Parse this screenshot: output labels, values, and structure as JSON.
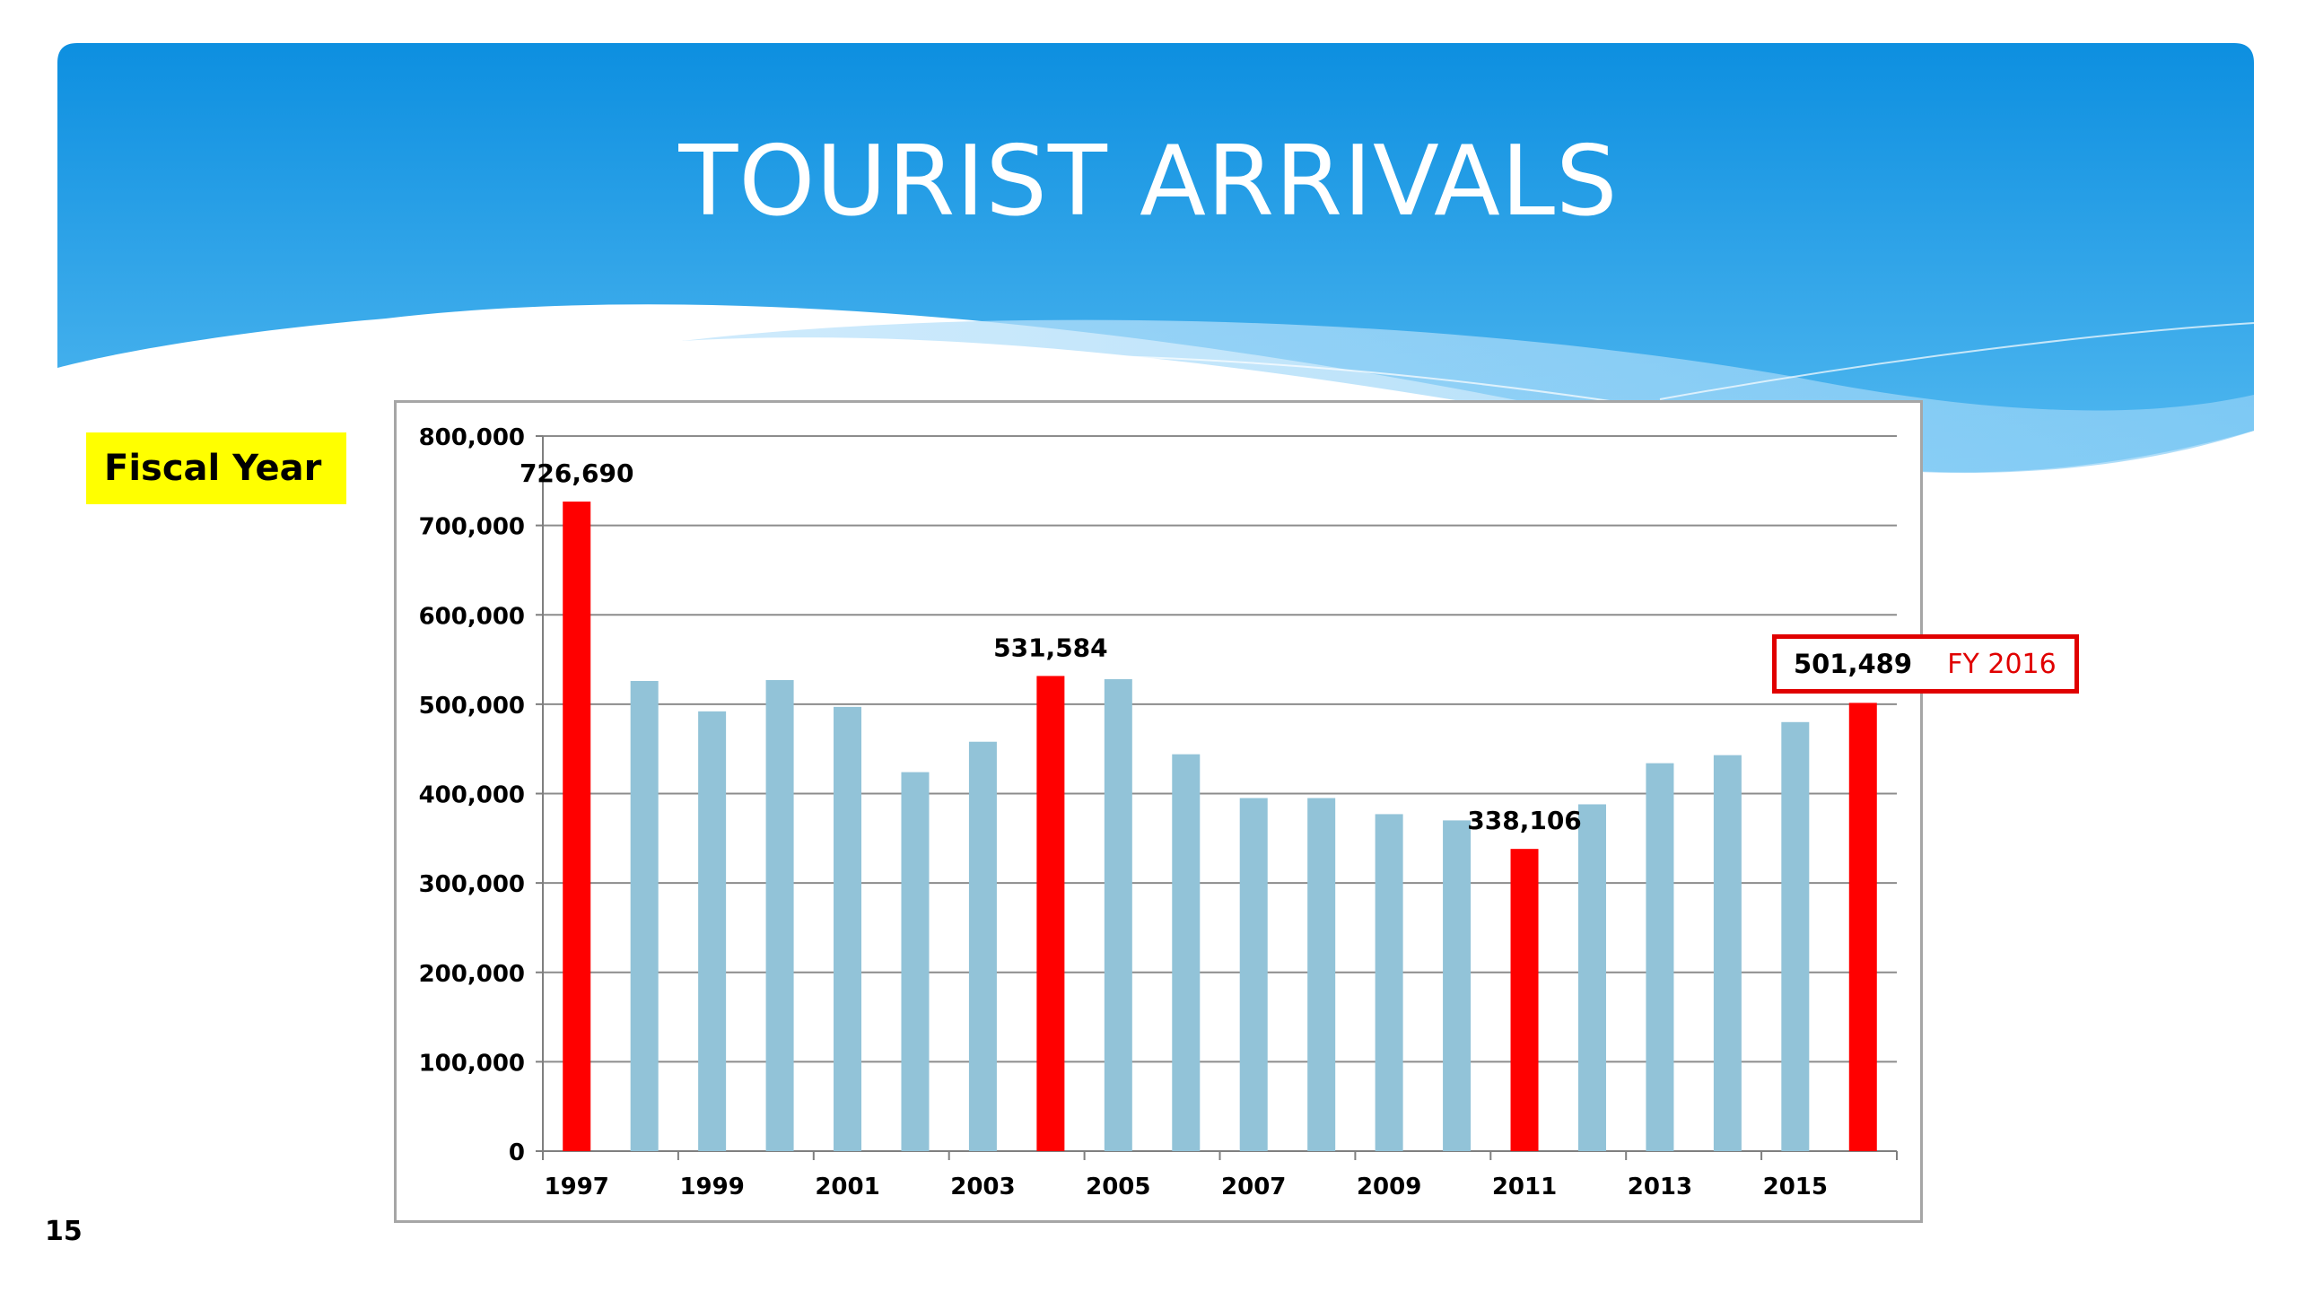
{
  "slide": {
    "title": "TOURIST ARRIVALS",
    "side_label": "Fiscal Year",
    "page_number": "15",
    "callout": {
      "value": "501,489",
      "label": "FY 2016"
    }
  },
  "colors": {
    "highlight_bar": "#ff0000",
    "regular_bar": "#92c3d8",
    "banner_top": "#1192e0",
    "banner_bottom": "#4bb3ee",
    "label_background": "#ffff00",
    "callout_border": "#e00000"
  },
  "chart_data": {
    "type": "bar",
    "title": "",
    "xlabel": "",
    "ylabel": "",
    "ylim": [
      0,
      800000
    ],
    "y_ticks": [
      0,
      100000,
      200000,
      300000,
      400000,
      500000,
      600000,
      700000,
      800000
    ],
    "y_tick_labels": [
      "0",
      "100,000",
      "200,000",
      "300,000",
      "400,000",
      "500,000",
      "600,000",
      "700,000",
      "800,000"
    ],
    "categories": [
      "1997",
      "1998",
      "1999",
      "2000",
      "2001",
      "2002",
      "2003",
      "2004",
      "2005",
      "2006",
      "2007",
      "2008",
      "2009",
      "2010",
      "2011",
      "2012",
      "2013",
      "2014",
      "2015",
      "2016"
    ],
    "x_tick_labels": [
      "1997",
      "1999",
      "2001",
      "2003",
      "2005",
      "2007",
      "2009",
      "2011",
      "2013",
      "2015"
    ],
    "values": [
      726690,
      526000,
      492000,
      527000,
      497000,
      424000,
      458000,
      531584,
      528000,
      444000,
      395000,
      395000,
      377000,
      370000,
      338106,
      388000,
      434000,
      443000,
      480000,
      501489
    ],
    "highlighted": [
      true,
      false,
      false,
      false,
      false,
      false,
      false,
      true,
      false,
      false,
      false,
      false,
      false,
      false,
      true,
      false,
      false,
      false,
      false,
      true
    ],
    "data_labels": [
      {
        "category": "1997",
        "text": "726,690"
      },
      {
        "category": "2004",
        "text": "531,584"
      },
      {
        "category": "2011",
        "text": "338,106"
      }
    ],
    "grid": true,
    "legend": "none"
  }
}
